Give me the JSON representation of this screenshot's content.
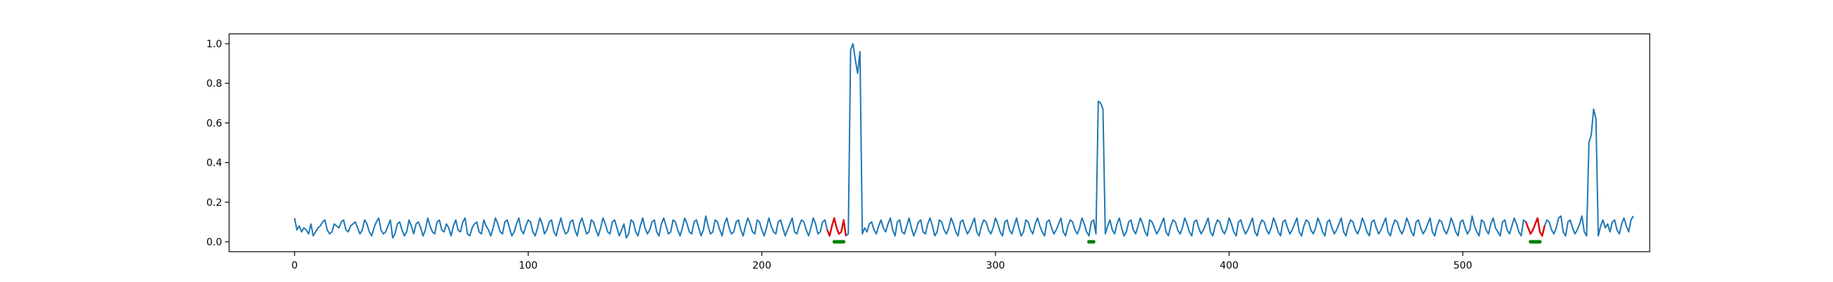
{
  "chart_data": {
    "type": "line",
    "title": "",
    "xlabel": "",
    "ylabel": "",
    "xlim": [
      -28,
      580
    ],
    "ylim": [
      -0.05,
      1.05
    ],
    "xticks": [
      0,
      100,
      200,
      300,
      400,
      500
    ],
    "yticks": [
      0.0,
      0.2,
      0.4,
      0.6,
      0.8,
      1.0
    ],
    "xtick_labels": [
      "0",
      "100",
      "200",
      "300",
      "400",
      "500"
    ],
    "ytick_labels": [
      "0.0",
      "0.2",
      "0.4",
      "0.6",
      "0.8",
      "1.0"
    ],
    "grid": false,
    "legend": "none",
    "series_colors": {
      "signal": "#1f77b4",
      "anomaly": "#e00000",
      "marker": "#008000"
    },
    "x_count": 554,
    "y": [
      0.12,
      0.06,
      0.08,
      0.05,
      0.07,
      0.06,
      0.04,
      0.09,
      0.03,
      0.05,
      0.07,
      0.08,
      0.1,
      0.11,
      0.06,
      0.04,
      0.05,
      0.09,
      0.08,
      0.07,
      0.1,
      0.11,
      0.06,
      0.05,
      0.08,
      0.09,
      0.1,
      0.07,
      0.04,
      0.06,
      0.11,
      0.09,
      0.05,
      0.03,
      0.07,
      0.1,
      0.12,
      0.06,
      0.04,
      0.05,
      0.08,
      0.11,
      0.02,
      0.04,
      0.09,
      0.1,
      0.06,
      0.03,
      0.05,
      0.11,
      0.08,
      0.04,
      0.09,
      0.1,
      0.07,
      0.03,
      0.06,
      0.12,
      0.08,
      0.05,
      0.04,
      0.1,
      0.11,
      0.06,
      0.05,
      0.09,
      0.07,
      0.03,
      0.08,
      0.11,
      0.06,
      0.05,
      0.1,
      0.12,
      0.04,
      0.03,
      0.07,
      0.09,
      0.1,
      0.05,
      0.04,
      0.11,
      0.08,
      0.06,
      0.03,
      0.07,
      0.12,
      0.09,
      0.05,
      0.04,
      0.1,
      0.11,
      0.07,
      0.03,
      0.05,
      0.09,
      0.12,
      0.06,
      0.04,
      0.08,
      0.11,
      0.1,
      0.05,
      0.03,
      0.07,
      0.12,
      0.09,
      0.04,
      0.06,
      0.1,
      0.11,
      0.05,
      0.03,
      0.08,
      0.12,
      0.07,
      0.04,
      0.05,
      0.1,
      0.11,
      0.06,
      0.03,
      0.09,
      0.12,
      0.08,
      0.04,
      0.05,
      0.11,
      0.1,
      0.06,
      0.03,
      0.07,
      0.12,
      0.09,
      0.05,
      0.04,
      0.1,
      0.11,
      0.07,
      0.03,
      0.06,
      0.09,
      0.02,
      0.04,
      0.11,
      0.1,
      0.05,
      0.03,
      0.08,
      0.12,
      0.07,
      0.04,
      0.06,
      0.1,
      0.11,
      0.05,
      0.03,
      0.09,
      0.12,
      0.08,
      0.04,
      0.05,
      0.11,
      0.1,
      0.06,
      0.03,
      0.07,
      0.12,
      0.09,
      0.05,
      0.04,
      0.1,
      0.11,
      0.07,
      0.03,
      0.06,
      0.13,
      0.08,
      0.04,
      0.05,
      0.11,
      0.1,
      0.06,
      0.03,
      0.09,
      0.12,
      0.07,
      0.04,
      0.05,
      0.1,
      0.11,
      0.06,
      0.03,
      0.08,
      0.12,
      0.09,
      0.05,
      0.04,
      0.11,
      0.1,
      0.06,
      0.03,
      0.07,
      0.12,
      0.08,
      0.05,
      0.04,
      0.1,
      0.11,
      0.07,
      0.03,
      0.06,
      0.09,
      0.12,
      0.05,
      0.04,
      0.08,
      0.11,
      0.1,
      0.06,
      0.03,
      0.07,
      0.12,
      0.09,
      0.04,
      0.05,
      0.1,
      0.11,
      0.06,
      0.03,
      0.08,
      0.12,
      0.07,
      0.04,
      0.05,
      0.11,
      0.03,
      0.04,
      0.97,
      1.0,
      0.92,
      0.85,
      0.96,
      0.04,
      0.07,
      0.05,
      0.09,
      0.1,
      0.06,
      0.04,
      0.08,
      0.11,
      0.07,
      0.05,
      0.09,
      0.12,
      0.06,
      0.03,
      0.1,
      0.11,
      0.05,
      0.04,
      0.08,
      0.12,
      0.07,
      0.03,
      0.06,
      0.1,
      0.11,
      0.05,
      0.04,
      0.09,
      0.12,
      0.08,
      0.03,
      0.05,
      0.11,
      0.1,
      0.06,
      0.04,
      0.07,
      0.12,
      0.09,
      0.05,
      0.03,
      0.1,
      0.11,
      0.07,
      0.04,
      0.06,
      0.09,
      0.12,
      0.05,
      0.03,
      0.08,
      0.11,
      0.1,
      0.06,
      0.04,
      0.07,
      0.12,
      0.09,
      0.05,
      0.03,
      0.1,
      0.11,
      0.06,
      0.04,
      0.08,
      0.12,
      0.07,
      0.03,
      0.05,
      0.11,
      0.1,
      0.06,
      0.04,
      0.09,
      0.12,
      0.08,
      0.05,
      0.03,
      0.1,
      0.11,
      0.07,
      0.04,
      0.06,
      0.09,
      0.12,
      0.05,
      0.03,
      0.08,
      0.11,
      0.1,
      0.06,
      0.04,
      0.07,
      0.12,
      0.09,
      0.05,
      0.03,
      0.1,
      0.11,
      0.04,
      0.71,
      0.7,
      0.67,
      0.04,
      0.08,
      0.11,
      0.06,
      0.04,
      0.09,
      0.12,
      0.07,
      0.03,
      0.05,
      0.1,
      0.11,
      0.06,
      0.04,
      0.08,
      0.12,
      0.09,
      0.05,
      0.03,
      0.11,
      0.1,
      0.07,
      0.04,
      0.06,
      0.09,
      0.12,
      0.05,
      0.03,
      0.08,
      0.11,
      0.1,
      0.06,
      0.04,
      0.07,
      0.12,
      0.09,
      0.05,
      0.03,
      0.1,
      0.11,
      0.07,
      0.04,
      0.06,
      0.09,
      0.12,
      0.05,
      0.03,
      0.08,
      0.11,
      0.1,
      0.06,
      0.04,
      0.07,
      0.12,
      0.09,
      0.05,
      0.03,
      0.1,
      0.11,
      0.07,
      0.04,
      0.06,
      0.09,
      0.12,
      0.05,
      0.03,
      0.08,
      0.11,
      0.1,
      0.06,
      0.04,
      0.07,
      0.12,
      0.09,
      0.05,
      0.03,
      0.1,
      0.11,
      0.07,
      0.04,
      0.06,
      0.09,
      0.12,
      0.05,
      0.03,
      0.08,
      0.11,
      0.1,
      0.06,
      0.04,
      0.07,
      0.12,
      0.09,
      0.05,
      0.03,
      0.1,
      0.11,
      0.07,
      0.04,
      0.06,
      0.09,
      0.12,
      0.05,
      0.03,
      0.08,
      0.11,
      0.1,
      0.06,
      0.04,
      0.07,
      0.12,
      0.09,
      0.05,
      0.03,
      0.1,
      0.11,
      0.07,
      0.04,
      0.06,
      0.09,
      0.12,
      0.05,
      0.03,
      0.08,
      0.11,
      0.1,
      0.06,
      0.04,
      0.07,
      0.12,
      0.09,
      0.05,
      0.03,
      0.1,
      0.11,
      0.07,
      0.04,
      0.06,
      0.09,
      0.12,
      0.05,
      0.03,
      0.08,
      0.11,
      0.1,
      0.06,
      0.04,
      0.07,
      0.12,
      0.09,
      0.05,
      0.03,
      0.1,
      0.11,
      0.07,
      0.04,
      0.06,
      0.13,
      0.08,
      0.05,
      0.03,
      0.11,
      0.1,
      0.06,
      0.04,
      0.09,
      0.12,
      0.07,
      0.05,
      0.03,
      0.1,
      0.11,
      0.06,
      0.04,
      0.08,
      0.12,
      0.09,
      0.05,
      0.03,
      0.11,
      0.1,
      0.07,
      0.04,
      0.06,
      0.09,
      0.12,
      0.05,
      0.03,
      0.08,
      0.11,
      0.1,
      0.06,
      0.04,
      0.07,
      0.12,
      0.13,
      0.05,
      0.03,
      0.1,
      0.11,
      0.07,
      0.04,
      0.06,
      0.09,
      0.13,
      0.05,
      0.03,
      0.5,
      0.54,
      0.67,
      0.62,
      0.03,
      0.08,
      0.11,
      0.07,
      0.09,
      0.05,
      0.1,
      0.11,
      0.06,
      0.04,
      0.09,
      0.12,
      0.08,
      0.05,
      0.11,
      0.13
    ],
    "anomaly_ranges": [
      [
        228,
        236
      ],
      [
        527,
        535
      ]
    ],
    "marker_ranges": [
      [
        231,
        235
      ],
      [
        340,
        342
      ],
      [
        529,
        533
      ]
    ]
  }
}
